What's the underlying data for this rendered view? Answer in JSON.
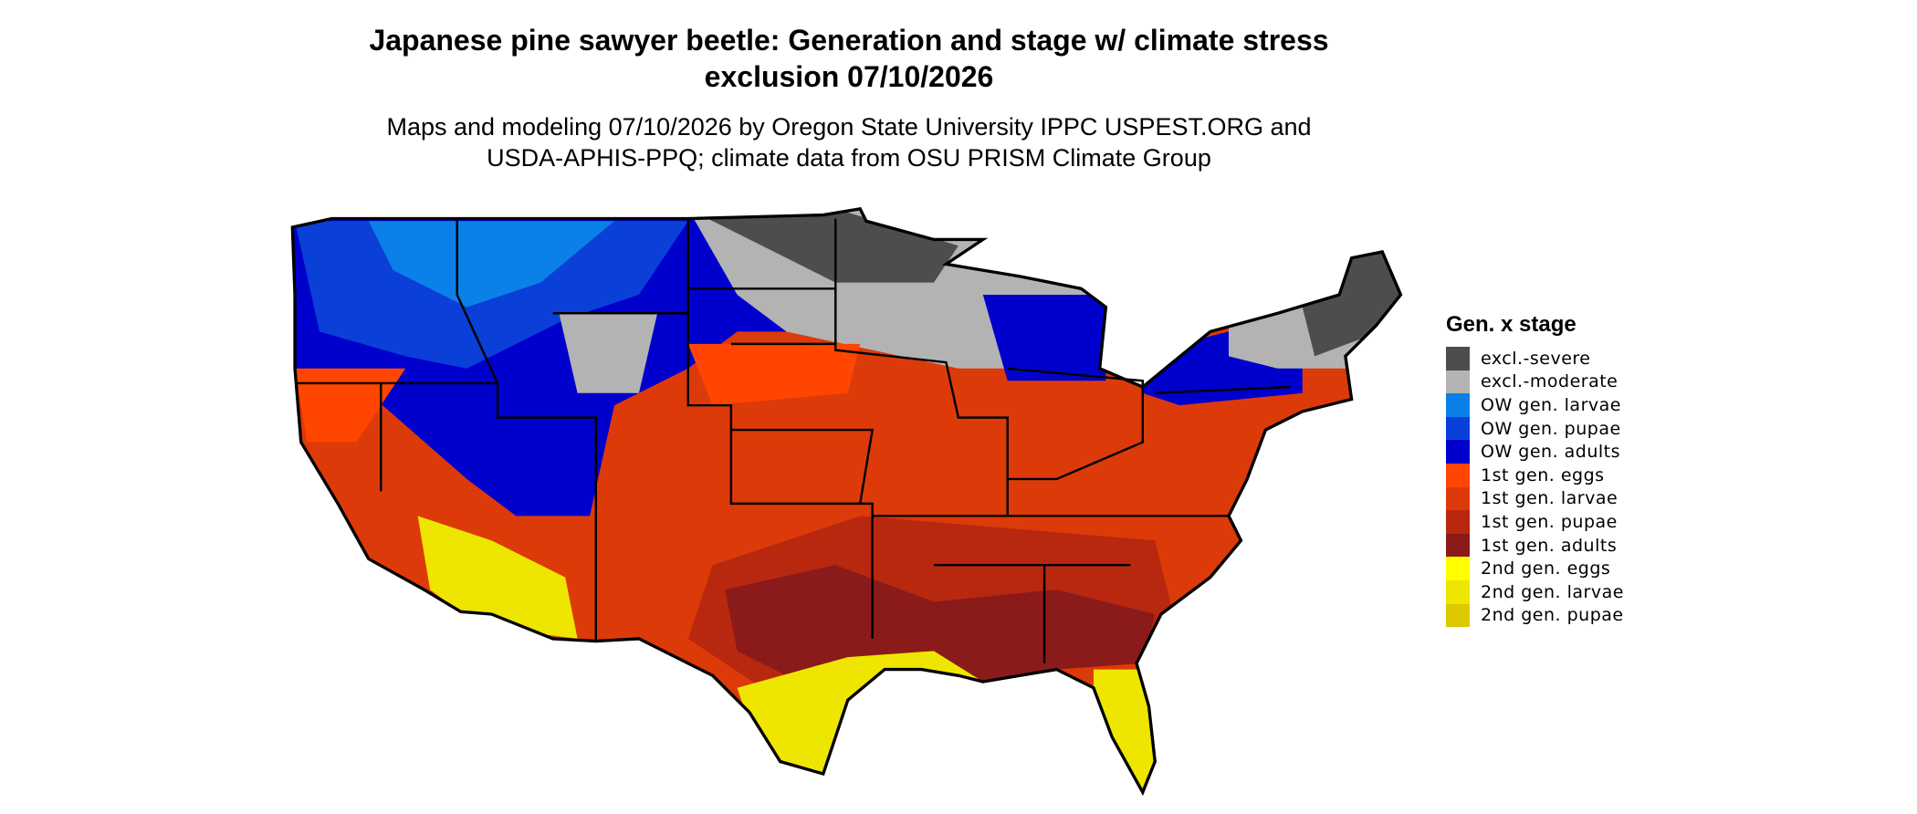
{
  "header": {
    "title": "Japanese pine sawyer beetle: Generation and stage w/ climate stress exclusion 07/10/2026",
    "subtitle": "Maps and modeling 07/10/2026 by Oregon State University IPPC USPEST.ORG and USDA-APHIS-PPQ; climate data from OSU PRISM Climate Group"
  },
  "legend": {
    "title": "Gen. x stage",
    "items": [
      {
        "label": "excl.-severe",
        "color": "#4d4d4d"
      },
      {
        "label": "excl.-moderate",
        "color": "#b3b3b3"
      },
      {
        "label": "OW gen. larvae",
        "color": "#0a80e8"
      },
      {
        "label": "OW gen. pupae",
        "color": "#0a40d8"
      },
      {
        "label": "OW gen. adults",
        "color": "#0000cd"
      },
      {
        "label": "1st gen. eggs",
        "color": "#ff4500"
      },
      {
        "label": "1st gen. larvae",
        "color": "#dd3a0a"
      },
      {
        "label": "1st gen. pupae",
        "color": "#b8280f"
      },
      {
        "label": "1st gen. adults",
        "color": "#8b1a1a"
      },
      {
        "label": "2nd gen. eggs",
        "color": "#ffff00"
      },
      {
        "label": "2nd gen. larvae",
        "color": "#eee600"
      },
      {
        "label": "2nd gen. pupae",
        "color": "#ddc800"
      }
    ]
  }
}
